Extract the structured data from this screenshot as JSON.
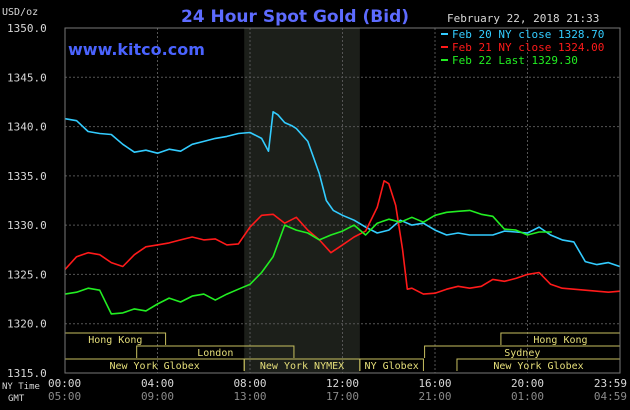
{
  "chart_data": {
    "type": "line",
    "title": "24 Hour Spot Gold (Bid)",
    "watermark": "www.kitco.com",
    "timestamp": "February 22, 2018 21:33",
    "ylabel": "USD/oz",
    "ylim": [
      1315.0,
      1350.0
    ],
    "yticks": [
      "1315.0",
      "1320.0",
      "1325.0",
      "1330.0",
      "1335.0",
      "1340.0",
      "1345.0",
      "1350.0"
    ],
    "xlim": [
      0,
      24
    ],
    "row_labels": {
      "ny": "NY Time",
      "gmt": "GMT"
    },
    "ny_ticks": [
      "00:00",
      "04:00",
      "08:00",
      "12:00",
      "16:00",
      "20:00",
      "23:59"
    ],
    "gmt_ticks": [
      "05:00",
      "09:00",
      "13:00",
      "17:00",
      "21:00",
      "01:00",
      "04:59"
    ],
    "shaded_range": [
      7.75,
      12.75
    ],
    "sessions": [
      {
        "label": "Hong Kong",
        "row": 0,
        "start": 0,
        "end": 4.35
      },
      {
        "label": "Hong Kong",
        "row": 0,
        "start": 18.85,
        "end": 24
      },
      {
        "label": "London",
        "row": 1,
        "start": 3.1,
        "end": 9.9
      },
      {
        "label": "Sydney",
        "row": 1,
        "start": 15.55,
        "end": 24
      },
      {
        "label": "New York Globex",
        "row": 2,
        "start": 0,
        "end": 7.75
      },
      {
        "label": "New York NYMEX",
        "row": 2,
        "start": 7.75,
        "end": 12.75
      },
      {
        "label": "NY Globex",
        "row": 2,
        "start": 12.75,
        "end": 15.5
      },
      {
        "label": "New York Globex",
        "row": 2,
        "start": 16.95,
        "end": 24
      }
    ],
    "series": [
      {
        "name": "Feb 20 NY close 1328.70",
        "color": "#33ccff",
        "x": [
          0,
          0.5,
          1,
          1.5,
          2,
          2.5,
          3,
          3.5,
          4,
          4.5,
          5,
          5.5,
          6,
          6.5,
          7,
          7.5,
          8,
          8.5,
          8.8,
          9,
          9.2,
          9.5,
          9.8,
          10,
          10.5,
          11,
          11.3,
          11.6,
          12,
          12.5,
          13,
          13.5,
          14,
          14.5,
          15,
          15.5,
          16,
          16.5,
          17,
          17.5,
          18,
          18.5,
          19,
          19.5,
          20,
          20.5,
          21,
          21.5,
          22,
          22.5,
          23,
          23.5,
          23.99
        ],
        "values": [
          1340.8,
          1340.6,
          1339.5,
          1339.3,
          1339.2,
          1338.2,
          1337.4,
          1337.6,
          1337.3,
          1337.7,
          1337.5,
          1338.2,
          1338.5,
          1338.8,
          1339.0,
          1339.3,
          1339.4,
          1338.8,
          1337.5,
          1341.5,
          1341.2,
          1340.4,
          1340.1,
          1339.8,
          1338.5,
          1335.2,
          1332.5,
          1331.5,
          1331.0,
          1330.5,
          1329.8,
          1329.2,
          1329.5,
          1330.5,
          1330.0,
          1330.2,
          1329.5,
          1329.0,
          1329.2,
          1329.0,
          1329.0,
          1329.0,
          1329.4,
          1329.3,
          1329.2,
          1329.8,
          1329.0,
          1328.5,
          1328.3,
          1326.3,
          1326.0,
          1326.2,
          1325.8
        ]
      },
      {
        "name": "Feb 21 NY close 1324.00",
        "color": "#ff1a1a",
        "x": [
          0,
          0.5,
          1,
          1.5,
          2,
          2.5,
          3,
          3.5,
          4,
          4.5,
          5,
          5.5,
          6,
          6.5,
          7,
          7.5,
          8,
          8.5,
          9,
          9.5,
          10,
          10.5,
          11,
          11.5,
          12,
          12.5,
          13,
          13.5,
          13.8,
          14,
          14.3,
          14.6,
          14.8,
          15,
          15.5,
          16,
          16.5,
          17,
          17.5,
          18,
          18.5,
          19,
          19.5,
          20,
          20.5,
          21,
          21.5,
          22,
          22.5,
          23,
          23.5,
          23.99
        ],
        "values": [
          1325.5,
          1326.8,
          1327.2,
          1327.0,
          1326.2,
          1325.8,
          1327.0,
          1327.8,
          1328.0,
          1328.2,
          1328.5,
          1328.8,
          1328.5,
          1328.6,
          1328.0,
          1328.1,
          1329.8,
          1331.0,
          1331.1,
          1330.2,
          1330.8,
          1329.5,
          1328.5,
          1327.2,
          1328.0,
          1328.8,
          1329.4,
          1331.8,
          1334.5,
          1334.2,
          1332.0,
          1327.5,
          1323.5,
          1323.6,
          1323.0,
          1323.1,
          1323.5,
          1323.8,
          1323.6,
          1323.8,
          1324.5,
          1324.3,
          1324.6,
          1325.0,
          1325.2,
          1324.0,
          1323.6,
          1323.5,
          1323.4,
          1323.3,
          1323.2,
          1323.3
        ]
      },
      {
        "name": "Feb 22 Last 1329.30",
        "color": "#22ee22",
        "x": [
          0,
          0.5,
          1,
          1.5,
          2,
          2.5,
          3,
          3.5,
          4,
          4.5,
          5,
          5.5,
          6,
          6.5,
          7,
          7.5,
          8,
          8.5,
          9,
          9.5,
          10,
          10.5,
          11,
          11.5,
          12,
          12.5,
          13,
          13.5,
          14,
          14.5,
          15,
          15.5,
          16,
          16.5,
          17,
          17.5,
          18,
          18.5,
          19,
          19.5,
          20,
          20.5,
          21.05
        ],
        "values": [
          1323.0,
          1323.2,
          1323.6,
          1323.4,
          1321.0,
          1321.1,
          1321.5,
          1321.3,
          1322.0,
          1322.6,
          1322.2,
          1322.8,
          1323.0,
          1322.4,
          1323.0,
          1323.5,
          1324.0,
          1325.2,
          1326.8,
          1330.0,
          1329.5,
          1329.2,
          1328.5,
          1329.0,
          1329.4,
          1330.0,
          1329.0,
          1330.2,
          1330.6,
          1330.3,
          1330.8,
          1330.3,
          1331.0,
          1331.3,
          1331.4,
          1331.5,
          1331.1,
          1330.9,
          1329.6,
          1329.5,
          1329.0,
          1329.3,
          1329.3
        ]
      }
    ]
  }
}
